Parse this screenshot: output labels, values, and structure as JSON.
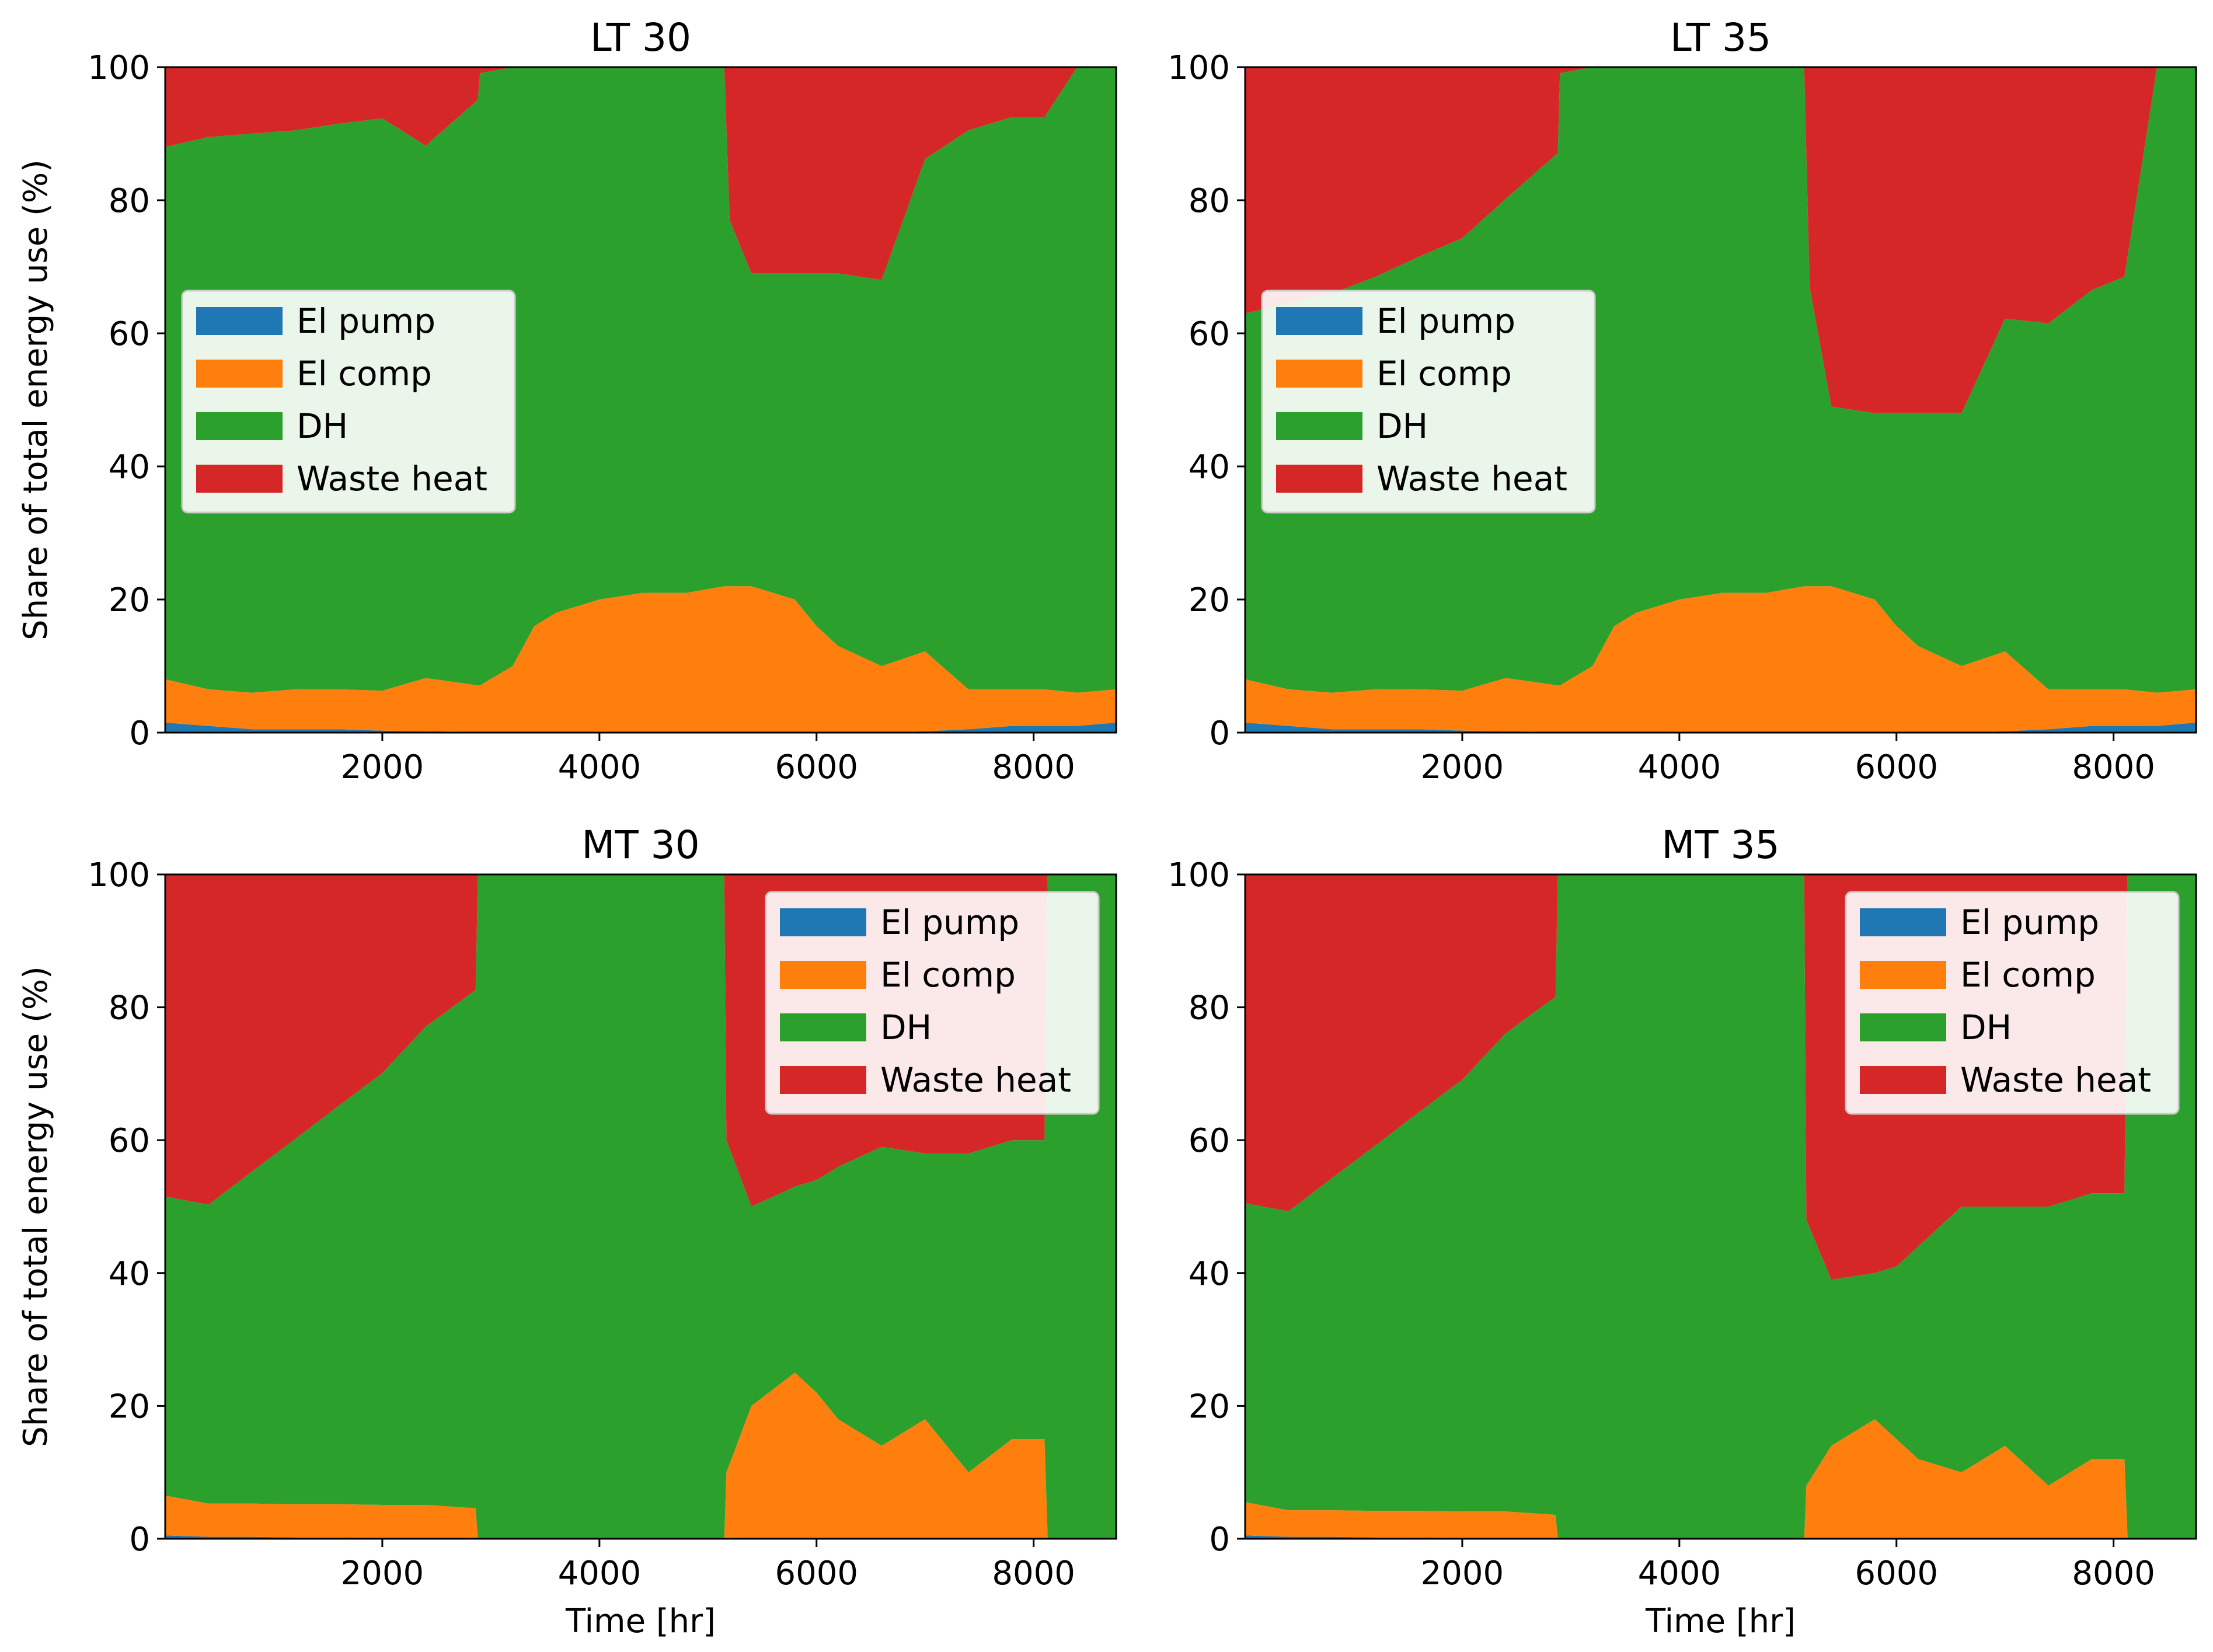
{
  "figure": {
    "ylabel": "Share of total energy use (%)",
    "xlabel": "Time [hr]",
    "series_names": [
      "El pump",
      "El comp",
      "DH",
      "Waste heat"
    ],
    "colors": {
      "El pump": "#1f77b4",
      "El comp": "#ff7f0e",
      "DH": "#2ca02c",
      "Waste heat": "#d62728"
    }
  },
  "chart_data": [
    {
      "type": "area",
      "stacked": true,
      "title": "LT 30",
      "xlabel": "",
      "ylabel": "Share of total energy use (%)",
      "xlim": [
        0,
        8760
      ],
      "ylim": [
        0,
        100
      ],
      "xticks": [
        2000,
        4000,
        6000,
        8000
      ],
      "yticks": [
        0,
        20,
        40,
        60,
        80,
        100
      ],
      "legend": {
        "position": "center-left",
        "entries": [
          "El pump",
          "El comp",
          "DH",
          "Waste heat"
        ]
      },
      "x": [
        0,
        400,
        800,
        1200,
        1600,
        2000,
        2400,
        2880,
        2900,
        3200,
        3400,
        3600,
        4000,
        4400,
        4800,
        5150,
        5200,
        5400,
        5800,
        6000,
        6200,
        6600,
        7000,
        7400,
        7800,
        8100,
        8400,
        8760
      ],
      "series": [
        {
          "name": "El pump",
          "values": [
            1.5,
            1,
            0.5,
            0.5,
            0.5,
            0.3,
            0.2,
            0.1,
            0.1,
            0,
            0,
            0,
            0,
            0,
            0,
            0,
            0,
            0,
            0,
            0,
            0,
            0,
            0.2,
            0.5,
            1,
            1,
            1,
            1.5
          ]
        },
        {
          "name": "El comp",
          "values": [
            6.5,
            5.5,
            5.5,
            6,
            6,
            6,
            8,
            7,
            7,
            10,
            16,
            18,
            20,
            21,
            21,
            22,
            22,
            22,
            20,
            16,
            13,
            10,
            12,
            6,
            5.5,
            5.5,
            5,
            5
          ]
        },
        {
          "name": "DH",
          "values": [
            80,
            83,
            84,
            84,
            85,
            86,
            80,
            88,
            92,
            90,
            84,
            82,
            80,
            79,
            79,
            78,
            55,
            47,
            49,
            53,
            56,
            58,
            74,
            84,
            86,
            86,
            94,
            93.5
          ]
        },
        {
          "name": "Waste heat",
          "values": [
            12,
            10.5,
            10,
            9.5,
            8.5,
            7.7,
            11.8,
            4.9,
            0.9,
            0,
            0,
            0,
            0,
            0,
            0,
            0,
            23,
            31,
            31,
            31,
            31,
            32,
            13.8,
            9.5,
            7.5,
            7.5,
            0,
            0
          ]
        }
      ]
    },
    {
      "type": "area",
      "stacked": true,
      "title": "LT 35",
      "xlabel": "",
      "ylabel": "",
      "xlim": [
        0,
        8760
      ],
      "ylim": [
        0,
        100
      ],
      "xticks": [
        2000,
        4000,
        6000,
        8000
      ],
      "yticks": [
        0,
        20,
        40,
        60,
        80,
        100
      ],
      "legend": {
        "position": "center-left",
        "entries": [
          "El pump",
          "El comp",
          "DH",
          "Waste heat"
        ]
      },
      "x": [
        0,
        400,
        800,
        1200,
        1600,
        2000,
        2400,
        2880,
        2900,
        3200,
        3400,
        3600,
        4000,
        4400,
        4800,
        5150,
        5200,
        5400,
        5800,
        6000,
        6200,
        6600,
        7000,
        7400,
        7800,
        8100,
        8400,
        8760
      ],
      "series": [
        {
          "name": "El pump",
          "values": [
            1.5,
            1,
            0.5,
            0.5,
            0.5,
            0.3,
            0.2,
            0.1,
            0.1,
            0,
            0,
            0,
            0,
            0,
            0,
            0,
            0,
            0,
            0,
            0,
            0,
            0,
            0.2,
            0.5,
            1,
            1,
            1,
            1.5
          ]
        },
        {
          "name": "El comp",
          "values": [
            6.5,
            5.5,
            5.5,
            6,
            6,
            6,
            8,
            7,
            7,
            10,
            16,
            18,
            20,
            21,
            21,
            22,
            22,
            22,
            20,
            16,
            13,
            10,
            12,
            6,
            5.5,
            5.5,
            5,
            5
          ]
        },
        {
          "name": "DH",
          "values": [
            55,
            58,
            60,
            62,
            65,
            68,
            72,
            80,
            92,
            90,
            84,
            82,
            80,
            79,
            79,
            78,
            45,
            27,
            28,
            32,
            35,
            38,
            50,
            55,
            60,
            62,
            94,
            93.5
          ]
        },
        {
          "name": "Waste heat",
          "values": [
            37,
            35.5,
            34,
            31.5,
            28.5,
            25.7,
            19.8,
            12.9,
            0.9,
            0,
            0,
            0,
            0,
            0,
            0,
            0,
            33,
            51,
            52,
            52,
            52,
            52,
            37.8,
            38.5,
            33.5,
            31.5,
            0,
            0
          ]
        }
      ]
    },
    {
      "type": "area",
      "stacked": true,
      "title": "MT 30",
      "xlabel": "Time [hr]",
      "ylabel": "Share of total energy use (%)",
      "xlim": [
        0,
        8760
      ],
      "ylim": [
        0,
        100
      ],
      "xticks": [
        2000,
        4000,
        6000,
        8000
      ],
      "yticks": [
        0,
        20,
        40,
        60,
        80,
        100
      ],
      "legend": {
        "position": "top-right",
        "entries": [
          "El pump",
          "El comp",
          "DH",
          "Waste heat"
        ]
      },
      "x": [
        0,
        400,
        800,
        1200,
        1600,
        2000,
        2400,
        2860,
        2880,
        3200,
        4000,
        4800,
        5150,
        5170,
        5400,
        5800,
        6000,
        6200,
        6600,
        7000,
        7400,
        7800,
        8100,
        8130,
        8400,
        8760
      ],
      "series": [
        {
          "name": "El pump",
          "values": [
            0.5,
            0.3,
            0.3,
            0.2,
            0.2,
            0.1,
            0.1,
            0.1,
            0,
            0,
            0,
            0,
            0,
            0,
            0,
            0,
            0,
            0,
            0,
            0,
            0,
            0,
            0,
            0,
            0,
            0
          ]
        },
        {
          "name": "El comp",
          "values": [
            6,
            5,
            5,
            5,
            5,
            5,
            5,
            4.5,
            0,
            0,
            0,
            0,
            0,
            10,
            20,
            25,
            22,
            18,
            14,
            18,
            10,
            15,
            15,
            0,
            0,
            0
          ]
        },
        {
          "name": "DH",
          "values": [
            45,
            45,
            50,
            55,
            60,
            65,
            72,
            78,
            100,
            100,
            100,
            100,
            100,
            50,
            30,
            28,
            32,
            38,
            45,
            40,
            48,
            45,
            45,
            100,
            100,
            100
          ]
        },
        {
          "name": "Waste heat",
          "values": [
            48.5,
            49.7,
            44.7,
            39.8,
            34.8,
            29.9,
            22.9,
            17.4,
            0,
            0,
            0,
            0,
            0,
            40,
            50,
            47,
            46,
            44,
            41,
            42,
            42,
            40,
            40,
            0,
            0,
            0
          ]
        }
      ]
    },
    {
      "type": "area",
      "stacked": true,
      "title": "MT 35",
      "xlabel": "Time [hr]",
      "ylabel": "",
      "xlim": [
        0,
        8760
      ],
      "ylim": [
        0,
        100
      ],
      "xticks": [
        2000,
        4000,
        6000,
        8000
      ],
      "yticks": [
        0,
        20,
        40,
        60,
        80,
        100
      ],
      "legend": {
        "position": "top-right",
        "entries": [
          "El pump",
          "El comp",
          "DH",
          "Waste heat"
        ]
      },
      "x": [
        0,
        400,
        800,
        1200,
        1600,
        2000,
        2400,
        2860,
        2880,
        3200,
        4000,
        4800,
        5150,
        5170,
        5400,
        5800,
        6000,
        6200,
        6600,
        7000,
        7400,
        7800,
        8100,
        8130,
        8400,
        8760
      ],
      "series": [
        {
          "name": "El pump",
          "values": [
            0.5,
            0.3,
            0.3,
            0.2,
            0.2,
            0.1,
            0.1,
            0.1,
            0,
            0,
            0,
            0,
            0,
            0,
            0,
            0,
            0,
            0,
            0,
            0,
            0,
            0,
            0,
            0,
            0,
            0
          ]
        },
        {
          "name": "El comp",
          "values": [
            5,
            4,
            4,
            4,
            4,
            4,
            4,
            3.5,
            0,
            0,
            0,
            0,
            0,
            8,
            14,
            18,
            15,
            12,
            10,
            14,
            8,
            12,
            12,
            0,
            0,
            0
          ]
        },
        {
          "name": "DH",
          "values": [
            45,
            45,
            50,
            55,
            60,
            65,
            72,
            78,
            100,
            100,
            100,
            100,
            100,
            40,
            25,
            22,
            26,
            32,
            40,
            36,
            42,
            40,
            40,
            100,
            100,
            100
          ]
        },
        {
          "name": "Waste heat",
          "values": [
            49.5,
            50.7,
            45.7,
            40.8,
            35.8,
            30.9,
            23.9,
            18.4,
            0,
            0,
            0,
            0,
            0,
            52,
            61,
            60,
            59,
            56,
            50,
            50,
            50,
            48,
            48,
            0,
            0,
            0
          ]
        }
      ]
    }
  ]
}
